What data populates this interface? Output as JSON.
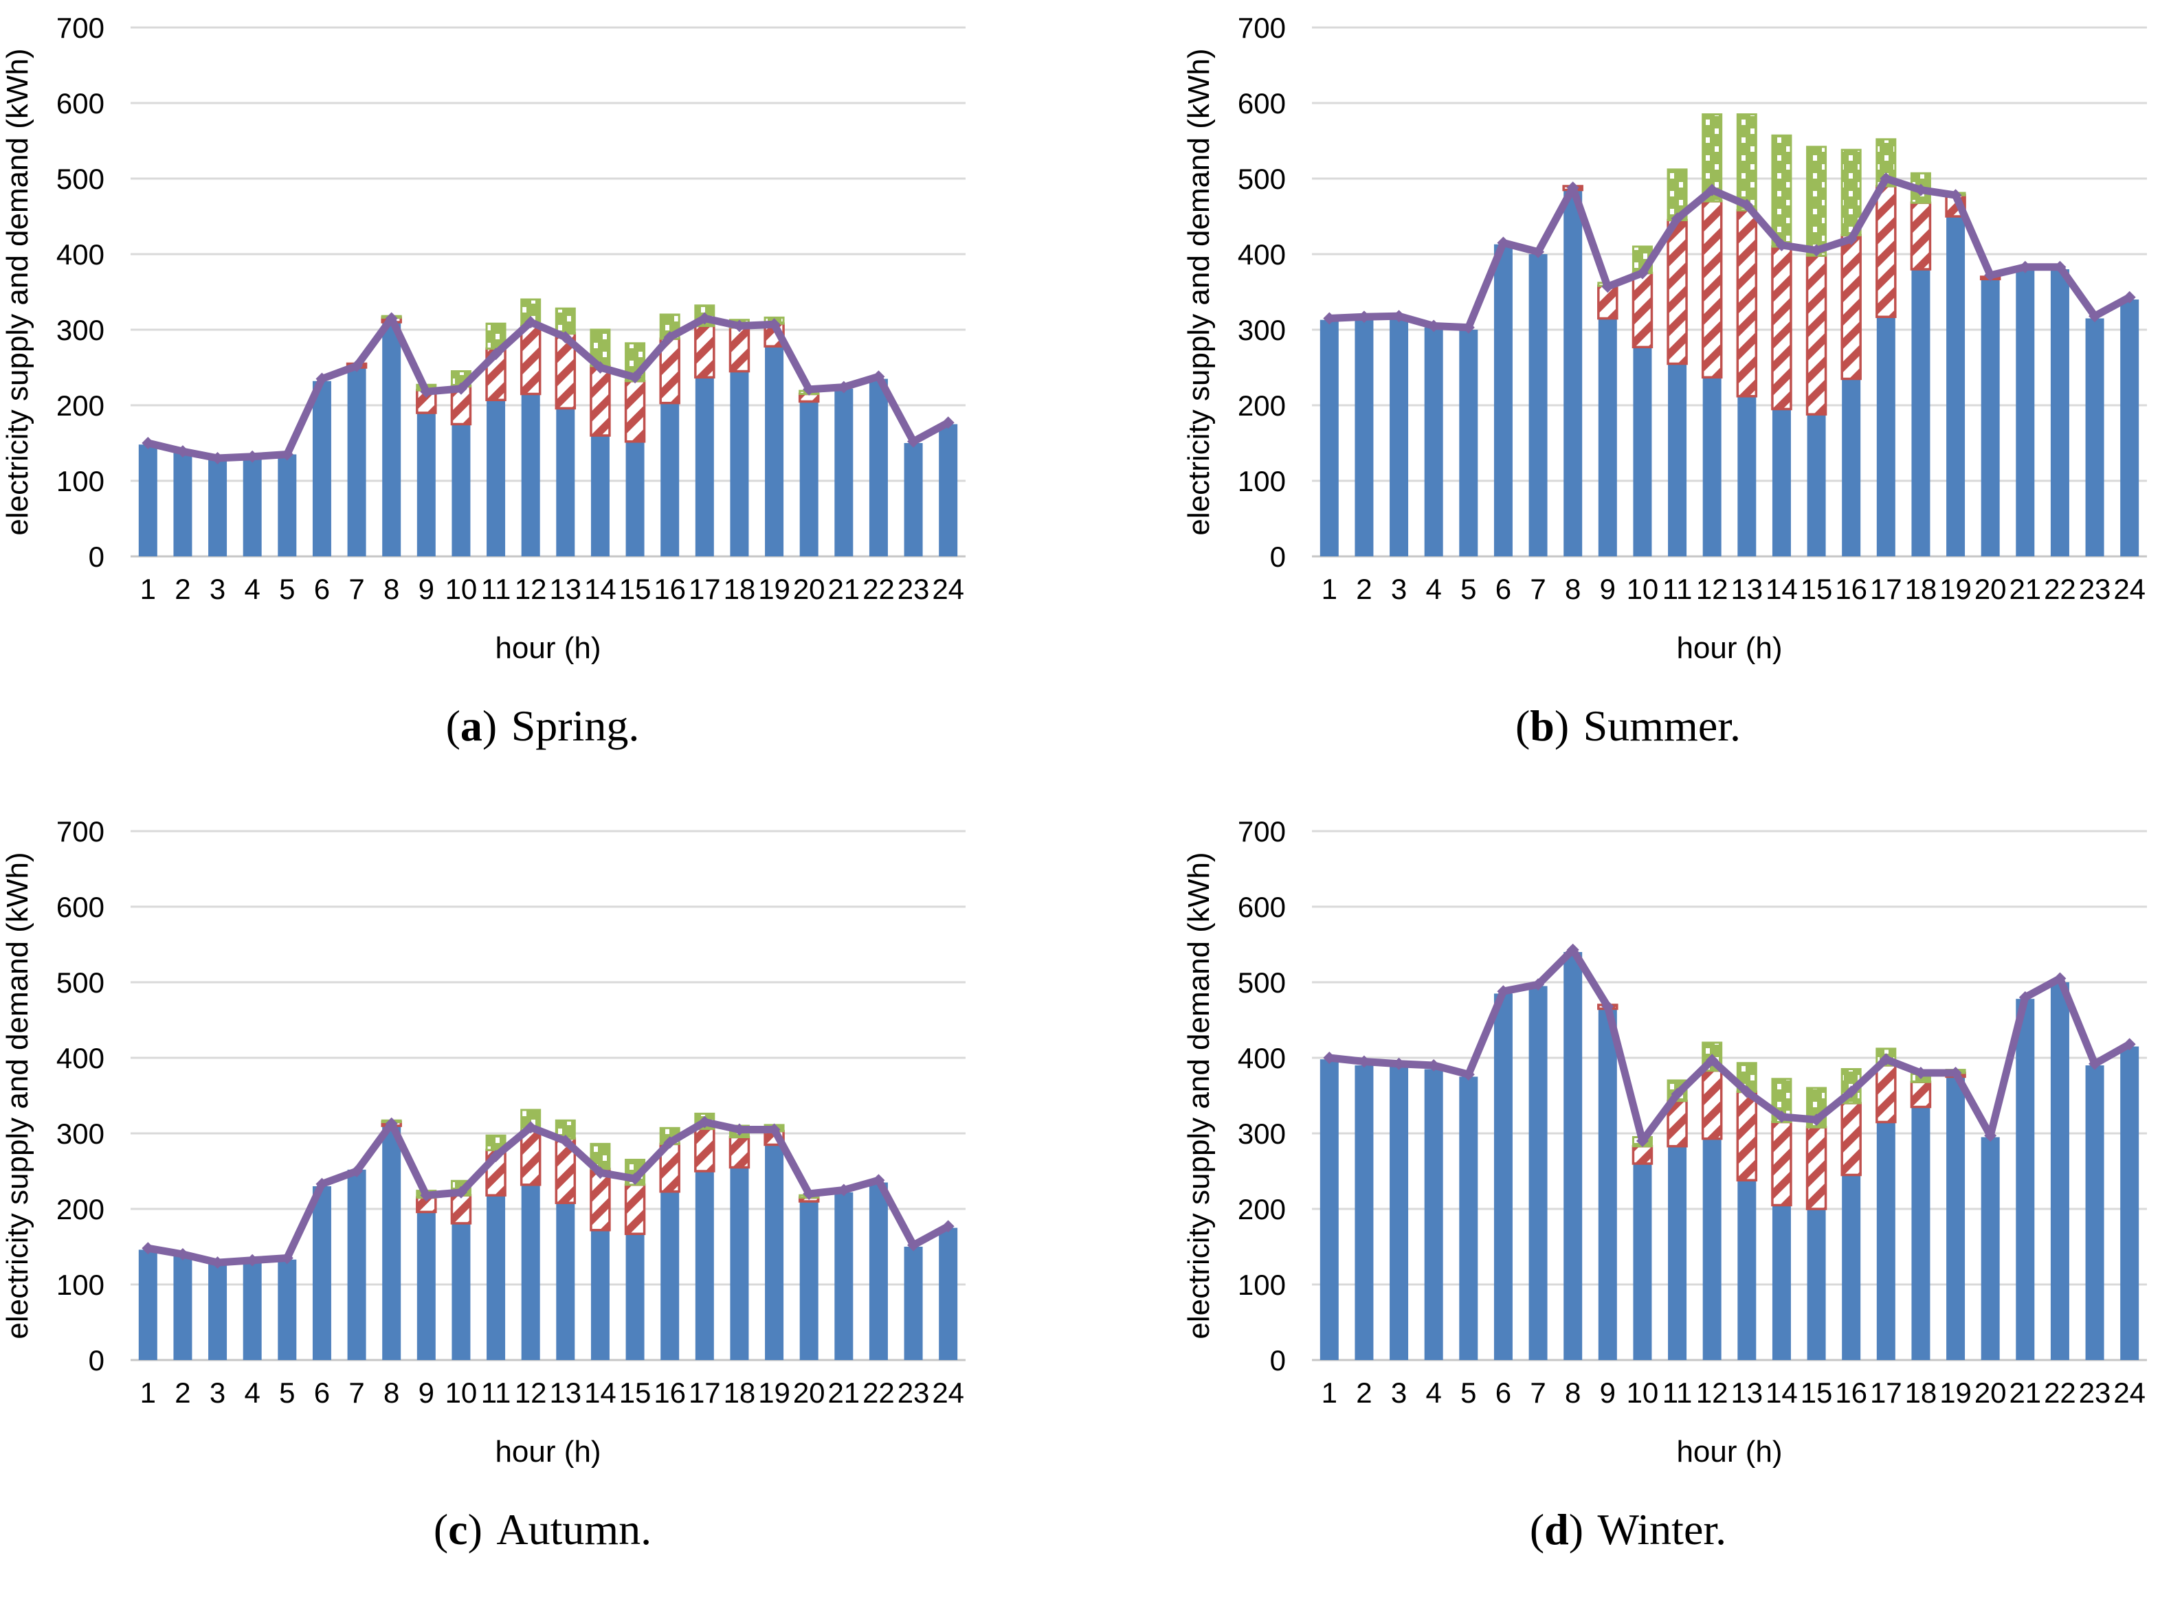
{
  "figure": {
    "y_axis_label": "electricity supply and demand (kWh)",
    "x_axis_label": "hour (h)",
    "y_ticks": [
      0,
      100,
      200,
      300,
      400,
      500,
      600,
      700
    ],
    "hours": [
      "1",
      "2",
      "3",
      "4",
      "5",
      "6",
      "7",
      "8",
      "9",
      "10",
      "11",
      "12",
      "13",
      "14",
      "15",
      "16",
      "17",
      "18",
      "19",
      "20",
      "21",
      "22",
      "23",
      "24"
    ],
    "colors": {
      "bar_blue": "#4F81BD",
      "bar_red": "#C0504D",
      "bar_green": "#9BBB59",
      "line_purple": "#8064A2",
      "gridline": "#D9D9D9",
      "axis": "#C6C6C6",
      "text": "#000000"
    }
  },
  "chart_data": [
    {
      "id": "a",
      "type": "bar",
      "title": "(a) Spring.",
      "caption": {
        "open": "(",
        "letter": "a",
        "close": ")",
        "season": "Spring."
      },
      "xlabel": "hour (h)",
      "ylabel": "electricity supply and demand (kWh)",
      "x": [
        1,
        2,
        3,
        4,
        5,
        6,
        7,
        8,
        9,
        10,
        11,
        12,
        13,
        14,
        15,
        16,
        17,
        18,
        19,
        20,
        21,
        22,
        23,
        24
      ],
      "ylim": [
        0,
        700
      ],
      "grid": true,
      "legend": "none",
      "stacking": "segment tops are absolute kWh values",
      "series": [
        {
          "name": "solid-blue-bar",
          "style": "solid-blue",
          "values": [
            148,
            140,
            128,
            130,
            135,
            232,
            250,
            310,
            190,
            175,
            207,
            215,
            196,
            160,
            152,
            203,
            237,
            245,
            278,
            205,
            222,
            235,
            150,
            175
          ]
        },
        {
          "name": "red-hatched-bar",
          "style": "red-hatch",
          "values_top": [
            148,
            140,
            128,
            130,
            135,
            232,
            255,
            316,
            220,
            225,
            275,
            305,
            295,
            252,
            232,
            288,
            305,
            303,
            308,
            215,
            222,
            235,
            150,
            175
          ]
        },
        {
          "name": "green-dotted-bar",
          "style": "green-dots",
          "values_top": [
            148,
            140,
            128,
            130,
            135,
            232,
            255,
            318,
            227,
            245,
            308,
            340,
            328,
            300,
            282,
            320,
            332,
            313,
            316,
            219,
            222,
            235,
            150,
            175
          ]
        },
        {
          "name": "purple-line",
          "style": "purple-line",
          "values": [
            150,
            139,
            130,
            132,
            135,
            235,
            252,
            315,
            218,
            222,
            268,
            310,
            290,
            250,
            237,
            290,
            315,
            305,
            307,
            221,
            224,
            238,
            152,
            177
          ]
        }
      ]
    },
    {
      "id": "b",
      "type": "bar",
      "title": "(b) Summer.",
      "caption": {
        "open": "(",
        "letter": "b",
        "close": ")",
        "season": "Summer."
      },
      "xlabel": "hour (h)",
      "ylabel": "electricity supply and demand (kWh)",
      "x": [
        1,
        2,
        3,
        4,
        5,
        6,
        7,
        8,
        9,
        10,
        11,
        12,
        13,
        14,
        15,
        16,
        17,
        18,
        19,
        20,
        21,
        22,
        23,
        24
      ],
      "ylim": [
        0,
        700
      ],
      "grid": true,
      "legend": "none",
      "stacking": "segment tops are absolute kWh values",
      "series": [
        {
          "name": "solid-blue-bar",
          "style": "solid-blue",
          "values": [
            313,
            315,
            315,
            303,
            300,
            413,
            400,
            485,
            315,
            277,
            255,
            237,
            212,
            195,
            188,
            235,
            317,
            380,
            450,
            367,
            380,
            380,
            315,
            340
          ]
        },
        {
          "name": "red-hatched-bar",
          "style": "red-hatch",
          "values_top": [
            313,
            315,
            315,
            303,
            300,
            413,
            400,
            490,
            358,
            375,
            445,
            470,
            458,
            410,
            398,
            425,
            490,
            468,
            478,
            370,
            380,
            380,
            315,
            340
          ]
        },
        {
          "name": "green-dotted-bar",
          "style": "green-dots",
          "values_top": [
            313,
            315,
            315,
            303,
            300,
            413,
            400,
            490,
            362,
            410,
            512,
            585,
            585,
            557,
            542,
            538,
            552,
            507,
            481,
            370,
            380,
            380,
            315,
            340
          ]
        },
        {
          "name": "purple-line",
          "style": "purple-line",
          "values": [
            315,
            317,
            318,
            305,
            303,
            415,
            403,
            488,
            357,
            375,
            447,
            485,
            465,
            412,
            405,
            420,
            500,
            485,
            478,
            372,
            383,
            383,
            318,
            343
          ]
        }
      ]
    },
    {
      "id": "c",
      "type": "bar",
      "title": "(c) Autumn.",
      "caption": {
        "open": "(",
        "letter": "c",
        "close": ")",
        "season": "Autumn."
      },
      "xlabel": "hour (h)",
      "ylabel": "electricity supply and demand (kWh)",
      "x": [
        1,
        2,
        3,
        4,
        5,
        6,
        7,
        8,
        9,
        10,
        11,
        12,
        13,
        14,
        15,
        16,
        17,
        18,
        19,
        20,
        21,
        22,
        23,
        24
      ],
      "ylim": [
        0,
        700
      ],
      "grid": true,
      "legend": "none",
      "stacking": "segment tops are absolute kWh values",
      "series": [
        {
          "name": "solid-blue-bar",
          "style": "solid-blue",
          "values": [
            146,
            138,
            127,
            130,
            133,
            230,
            252,
            310,
            196,
            181,
            218,
            232,
            208,
            172,
            167,
            223,
            250,
            255,
            285,
            210,
            222,
            235,
            150,
            175
          ]
        },
        {
          "name": "red-hatched-bar",
          "style": "red-hatch",
          "values_top": [
            146,
            138,
            127,
            130,
            133,
            230,
            252,
            315,
            215,
            218,
            278,
            303,
            293,
            253,
            232,
            286,
            306,
            295,
            303,
            215,
            222,
            235,
            150,
            175
          ]
        },
        {
          "name": "green-dotted-bar",
          "style": "green-dots",
          "values_top": [
            146,
            138,
            127,
            130,
            133,
            230,
            252,
            317,
            224,
            237,
            297,
            331,
            317,
            286,
            265,
            307,
            326,
            310,
            311,
            218,
            222,
            235,
            150,
            175
          ]
        },
        {
          "name": "purple-line",
          "style": "purple-line",
          "values": [
            148,
            140,
            129,
            132,
            135,
            233,
            250,
            313,
            218,
            222,
            270,
            308,
            290,
            248,
            240,
            288,
            315,
            305,
            305,
            220,
            225,
            238,
            152,
            177
          ]
        }
      ]
    },
    {
      "id": "d",
      "type": "bar",
      "title": "(d) Winter.",
      "caption": {
        "open": "(",
        "letter": "d",
        "close": ")",
        "season": "Winter."
      },
      "xlabel": "hour (h)",
      "ylabel": "electricity supply and demand (kWh)",
      "x": [
        1,
        2,
        3,
        4,
        5,
        6,
        7,
        8,
        9,
        10,
        11,
        12,
        13,
        14,
        15,
        16,
        17,
        18,
        19,
        20,
        21,
        22,
        23,
        24
      ],
      "ylim": [
        0,
        700
      ],
      "grid": true,
      "legend": "none",
      "stacking": "segment tops are absolute kWh values",
      "series": [
        {
          "name": "solid-blue-bar",
          "style": "solid-blue",
          "values": [
            398,
            390,
            390,
            385,
            375,
            485,
            495,
            540,
            465,
            260,
            283,
            293,
            238,
            205,
            200,
            245,
            315,
            335,
            375,
            295,
            478,
            500,
            390,
            415
          ]
        },
        {
          "name": "red-hatched-bar",
          "style": "red-hatch",
          "values_top": [
            398,
            390,
            390,
            385,
            375,
            485,
            495,
            540,
            470,
            283,
            343,
            383,
            355,
            315,
            308,
            340,
            390,
            368,
            380,
            295,
            478,
            500,
            390,
            415
          ]
        },
        {
          "name": "green-dotted-bar",
          "style": "green-dots",
          "values_top": [
            398,
            390,
            390,
            385,
            375,
            485,
            495,
            540,
            470,
            295,
            370,
            420,
            393,
            372,
            360,
            385,
            412,
            382,
            384,
            295,
            478,
            500,
            390,
            415
          ]
        },
        {
          "name": "purple-line",
          "style": "purple-line",
          "values": [
            400,
            395,
            392,
            390,
            378,
            488,
            497,
            543,
            468,
            290,
            352,
            397,
            355,
            322,
            318,
            355,
            398,
            380,
            380,
            297,
            480,
            505,
            392,
            418
          ]
        }
      ]
    }
  ]
}
